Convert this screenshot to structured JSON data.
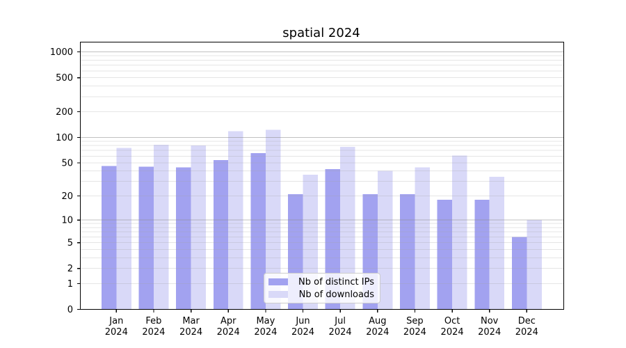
{
  "chart_data": {
    "type": "bar",
    "title": "spatial 2024",
    "year": "2024",
    "categories": [
      "Jan",
      "Feb",
      "Mar",
      "Apr",
      "May",
      "Jun",
      "Jul",
      "Aug",
      "Sep",
      "Oct",
      "Nov",
      "Dec"
    ],
    "series": [
      {
        "name": "Nb of distinct IPs",
        "color": "#a2a2f0",
        "values": [
          46,
          45,
          44,
          54,
          65,
          21,
          42,
          21,
          21,
          18,
          18,
          6
        ]
      },
      {
        "name": "Nb of downloads",
        "color": "#d9d9f8",
        "values": [
          75,
          82,
          80,
          118,
          123,
          36,
          77,
          40,
          44,
          61,
          34,
          10
        ]
      }
    ],
    "y_scale": "log10(1+x)",
    "ylim": [
      0,
      1300
    ],
    "y_ticks": [
      0,
      1,
      2,
      5,
      10,
      20,
      50,
      100,
      200,
      500,
      1000
    ],
    "grid": "horizontal major+minor, drawn over bars",
    "grid_major": [
      10,
      100,
      1000
    ],
    "legend_position": "lower center",
    "colors": {
      "axis": "#000000",
      "grid_major": "#8c8c8c",
      "grid_minor": "#a0a0a0",
      "background": "#ffffff"
    }
  }
}
